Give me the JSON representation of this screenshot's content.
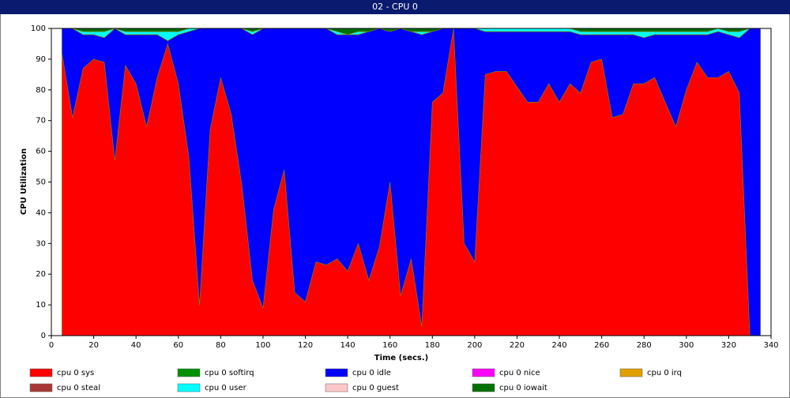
{
  "chart_data": {
    "type": "stacked-area",
    "title": "02 - CPU 0",
    "xlabel": "Time (secs.)",
    "ylabel": "CPU Utilization",
    "xlim": [
      0,
      340
    ],
    "xticks": [
      0,
      20,
      40,
      60,
      80,
      100,
      120,
      140,
      160,
      180,
      200,
      220,
      240,
      260,
      280,
      300,
      320,
      340
    ],
    "ylim": [
      0,
      100
    ],
    "yticks": [
      0,
      10,
      20,
      30,
      40,
      50,
      60,
      70,
      80,
      90,
      100
    ],
    "x": [
      5,
      10,
      15,
      20,
      25,
      30,
      35,
      40,
      45,
      50,
      55,
      60,
      65,
      70,
      75,
      80,
      85,
      90,
      95,
      100,
      105,
      110,
      115,
      120,
      125,
      130,
      135,
      140,
      145,
      150,
      155,
      160,
      165,
      170,
      175,
      180,
      185,
      190,
      195,
      200,
      205,
      210,
      215,
      220,
      225,
      230,
      235,
      240,
      245,
      250,
      255,
      260,
      265,
      270,
      275,
      280,
      285,
      290,
      295,
      300,
      305,
      310,
      315,
      320,
      325,
      330,
      335
    ],
    "series": [
      {
        "name": "cpu 0 sys",
        "color": "#ff0000",
        "values": [
          92,
          71,
          87,
          90,
          89,
          57,
          88,
          82,
          68,
          84,
          95,
          82,
          58,
          10,
          67,
          84,
          72,
          49,
          18,
          9,
          41,
          54,
          14,
          11,
          24,
          23,
          25,
          21,
          30,
          18,
          29,
          50,
          13,
          25,
          3,
          76,
          79,
          100,
          30,
          24,
          85,
          86,
          86,
          81,
          76,
          76,
          82,
          76,
          82,
          79,
          89,
          90,
          71,
          72,
          82,
          82,
          84,
          76,
          68,
          80,
          89,
          84,
          84,
          86,
          79,
          0,
          0
        ]
      },
      {
        "name": "cpu 0 softirq",
        "color": "#009000",
        "values": [
          0,
          0,
          0,
          0,
          0,
          0,
          0,
          0,
          0,
          0,
          0,
          0,
          0,
          0,
          0,
          0,
          0,
          0,
          0,
          0,
          0,
          0,
          0,
          0,
          0,
          0,
          0,
          0,
          0,
          0,
          0,
          0,
          0,
          0,
          0,
          0,
          0,
          0,
          0,
          0,
          0,
          0,
          0,
          0,
          0,
          0,
          0,
          0,
          0,
          0,
          0,
          0,
          0,
          0,
          0,
          0,
          0,
          0,
          0,
          0,
          0,
          0,
          0,
          0,
          0,
          0,
          0
        ]
      },
      {
        "name": "cpu 0 idle",
        "color": "#0000ff",
        "values": [
          8,
          29,
          11,
          8,
          8,
          43,
          10,
          16,
          30,
          14,
          1,
          16,
          41,
          90,
          33,
          16,
          28,
          51,
          80,
          91,
          59,
          46,
          86,
          89,
          76,
          77,
          73,
          77,
          68,
          81,
          71,
          49,
          87,
          74,
          95,
          23,
          21,
          0,
          70,
          76,
          14,
          13,
          13,
          18,
          23,
          23,
          17,
          23,
          17,
          19,
          9,
          8,
          27,
          26,
          16,
          15,
          14,
          22,
          30,
          18,
          9,
          14,
          15,
          12,
          18,
          100,
          100
        ]
      },
      {
        "name": "cpu 0 nice",
        "color": "#ff00ff",
        "values": [
          0,
          0,
          0,
          0,
          0,
          0,
          0,
          0,
          0,
          0,
          0,
          0,
          0,
          0,
          0,
          0,
          0,
          0,
          0,
          0,
          0,
          0,
          0,
          0,
          0,
          0,
          0,
          0,
          0,
          0,
          0,
          0,
          0,
          0,
          0,
          0,
          0,
          0,
          0,
          0,
          0,
          0,
          0,
          0,
          0,
          0,
          0,
          0,
          0,
          0,
          0,
          0,
          0,
          0,
          0,
          0,
          0,
          0,
          0,
          0,
          0,
          0,
          0,
          0,
          0,
          0,
          0
        ]
      },
      {
        "name": "cpu 0 irq",
        "color": "#e0a000",
        "values": [
          0,
          0,
          0,
          0,
          0,
          0,
          0,
          0,
          0,
          0,
          0,
          0,
          0,
          0,
          0,
          0,
          0,
          0,
          0,
          0,
          0,
          0,
          0,
          0,
          0,
          0,
          0,
          0,
          0,
          0,
          0,
          0,
          0,
          0,
          0,
          0,
          0,
          0,
          0,
          0,
          0,
          0,
          0,
          0,
          0,
          0,
          0,
          0,
          0,
          0,
          0,
          0,
          0,
          0,
          0,
          0,
          0,
          0,
          0,
          0,
          0,
          0,
          0,
          0,
          0,
          0,
          0
        ]
      },
      {
        "name": "cpu 0 steal",
        "color": "#a83838",
        "values": [
          0,
          0,
          0,
          0,
          0,
          0,
          0,
          0,
          0,
          0,
          0,
          0,
          0,
          0,
          0,
          0,
          0,
          0,
          0,
          0,
          0,
          0,
          0,
          0,
          0,
          0,
          0,
          0,
          0,
          0,
          0,
          0,
          0,
          0,
          0,
          0,
          0,
          0,
          0,
          0,
          0,
          0,
          0,
          0,
          0,
          0,
          0,
          0,
          0,
          0,
          0,
          0,
          0,
          0,
          0,
          0,
          0,
          0,
          0,
          0,
          0,
          0,
          0,
          0,
          0,
          0,
          0
        ]
      },
      {
        "name": "cpu 0 user",
        "color": "#00ffff",
        "values": [
          0,
          0,
          1,
          1,
          2,
          0,
          1,
          1,
          1,
          1,
          3,
          1,
          1,
          0,
          0,
          0,
          0,
          0,
          1,
          0,
          0,
          0,
          0,
          0,
          0,
          0,
          1,
          0,
          1,
          0,
          0,
          0,
          0,
          0,
          1,
          0,
          0,
          0,
          0,
          0,
          1,
          1,
          1,
          1,
          1,
          1,
          1,
          1,
          1,
          1,
          1,
          1,
          1,
          1,
          1,
          2,
          1,
          1,
          1,
          1,
          1,
          1,
          1,
          1,
          2,
          0,
          0
        ]
      },
      {
        "name": "cpu 0 guest",
        "color": "#ffc8c8",
        "values": [
          0,
          0,
          0,
          0,
          0,
          0,
          0,
          0,
          0,
          0,
          0,
          0,
          0,
          0,
          0,
          0,
          0,
          0,
          0,
          0,
          0,
          0,
          0,
          0,
          0,
          0,
          0,
          0,
          0,
          0,
          0,
          0,
          0,
          0,
          0,
          0,
          0,
          0,
          0,
          0,
          0,
          0,
          0,
          0,
          0,
          0,
          0,
          0,
          0,
          0,
          0,
          0,
          0,
          0,
          0,
          0,
          0,
          0,
          0,
          0,
          0,
          0,
          0,
          0,
          0,
          0,
          0
        ]
      },
      {
        "name": "cpu 0 iowait",
        "color": "#007000",
        "values": [
          0,
          0,
          1,
          1,
          1,
          0,
          1,
          1,
          1,
          1,
          1,
          1,
          0,
          0,
          0,
          0,
          0,
          0,
          1,
          0,
          0,
          0,
          0,
          0,
          0,
          0,
          1,
          2,
          1,
          1,
          0,
          1,
          0,
          1,
          1,
          1,
          0,
          0,
          0,
          0,
          0,
          0,
          0,
          0,
          0,
          0,
          0,
          0,
          0,
          1,
          1,
          1,
          1,
          1,
          1,
          1,
          1,
          1,
          1,
          1,
          1,
          1,
          0,
          1,
          1,
          0,
          0
        ]
      }
    ]
  }
}
